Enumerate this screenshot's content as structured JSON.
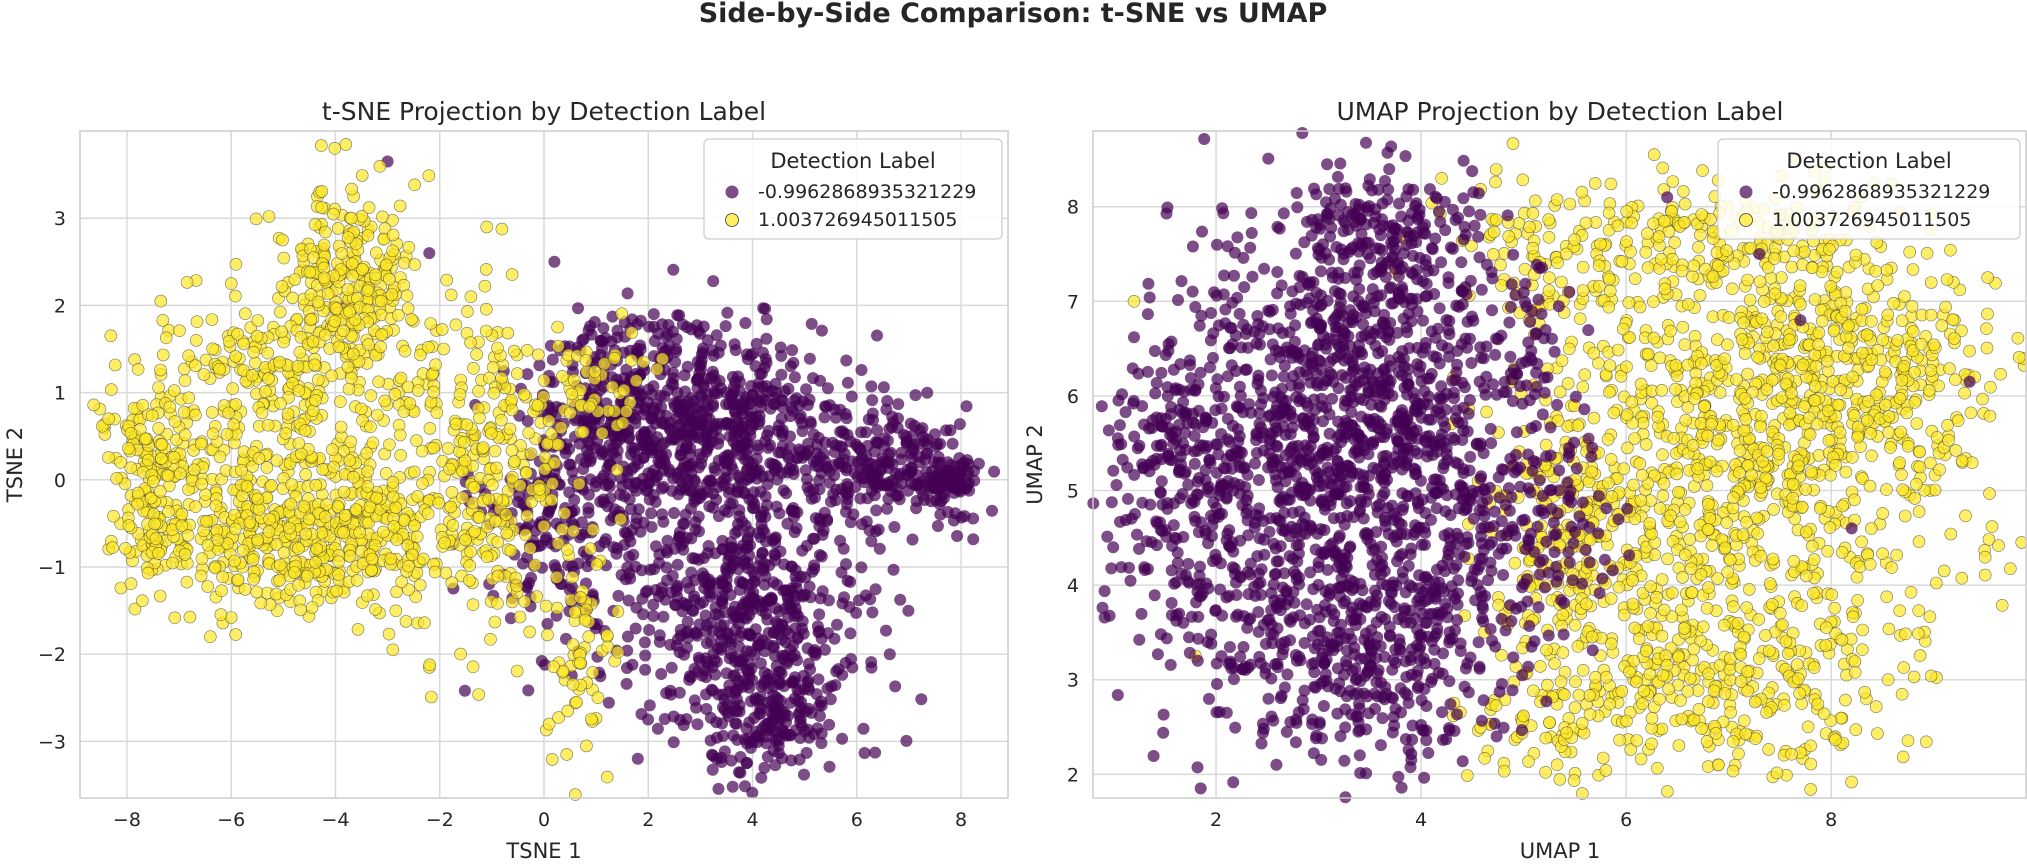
{
  "figure": {
    "suptitle": "Side-by-Side Comparison: t-SNE vs UMAP"
  },
  "colors": {
    "negative": "#440154",
    "positive": "#fde725",
    "grid": "#d9d9d9",
    "frame": "#cccccc",
    "text": "#262626"
  },
  "chart_data": [
    {
      "type": "scatter",
      "title": "t-SNE Projection by Detection Label",
      "xlabel": "TSNE 1",
      "ylabel": "TSNE 2",
      "xlim": [
        -8.9,
        8.9
      ],
      "ylim": [
        -3.65,
        4.0
      ],
      "xticks": [
        -8,
        -6,
        -4,
        -2,
        0,
        2,
        4,
        6,
        8
      ],
      "xtick_labels": [
        "−8",
        "−6",
        "−4",
        "−2",
        "0",
        "2",
        "4",
        "6",
        "8"
      ],
      "yticks": [
        -3,
        -2,
        -1,
        0,
        1,
        2,
        3
      ],
      "ytick_labels": [
        "−3",
        "−2",
        "−1",
        "0",
        "1",
        "2",
        "3"
      ],
      "grid": true,
      "legend": {
        "title": "Detection Label",
        "position": "top-right",
        "entries": [
          "-0.9962868935321229",
          "1.003726945011505"
        ]
      },
      "series": [
        {
          "name": "-0.9962868935321229",
          "color": "#440154",
          "clusters": [
            {
              "cx": 3.2,
              "cy": 0.6,
              "sx": 1.3,
              "sy": 0.6,
              "n": 650
            },
            {
              "cx": 3.8,
              "cy": -1.6,
              "sx": 1.2,
              "sy": 0.75,
              "n": 600
            },
            {
              "cx": 6.5,
              "cy": 0.1,
              "sx": 0.8,
              "sy": 0.35,
              "n": 230
            },
            {
              "cx": 7.7,
              "cy": 0.0,
              "sx": 0.35,
              "sy": 0.1,
              "n": 80
            },
            {
              "cx": 0.3,
              "cy": -0.3,
              "sx": 0.75,
              "sy": 0.9,
              "n": 220
            },
            {
              "cx": 1.4,
              "cy": 0.9,
              "sx": 0.6,
              "sy": 0.6,
              "n": 140
            },
            {
              "cx": 4.3,
              "cy": -2.8,
              "sx": 0.6,
              "sy": 0.3,
              "n": 110
            }
          ],
          "outliers": [
            [
              -3.0,
              3.65
            ],
            [
              -2.2,
              2.6
            ],
            [
              -3.8,
              2.0
            ],
            [
              0.2,
              2.5
            ],
            [
              1.8,
              -3.2
            ]
          ]
        },
        {
          "name": "1.003726945011505",
          "color": "#fde725",
          "clusters": [
            {
              "cx": -4.5,
              "cy": -0.6,
              "sx": 1.6,
              "sy": 0.45,
              "n": 560
            },
            {
              "cx": -7.5,
              "cy": 0.1,
              "sx": 0.45,
              "sy": 0.55,
              "n": 170
            },
            {
              "cx": -3.8,
              "cy": 2.4,
              "sx": 0.65,
              "sy": 0.45,
              "n": 220
            },
            {
              "cx": -5.0,
              "cy": 1.2,
              "sx": 1.3,
              "sy": 0.55,
              "n": 270
            },
            {
              "cx": -2.2,
              "cy": 0.3,
              "sx": 0.9,
              "sy": 0.9,
              "n": 160
            },
            {
              "cx": -0.6,
              "cy": 0.1,
              "sx": 0.6,
              "sy": 0.9,
              "n": 150
            },
            {
              "cx": 0.7,
              "cy": -1.9,
              "sx": 0.35,
              "sy": 0.6,
              "n": 70
            },
            {
              "cx": 1.0,
              "cy": 1.1,
              "sx": 0.5,
              "sy": 0.4,
              "n": 50
            }
          ],
          "outliers": [
            [
              -6.4,
              -1.8
            ],
            [
              -2.9,
              -1.95
            ],
            [
              -1.6,
              -2.0
            ],
            [
              -1.1,
              2.9
            ],
            [
              -6.0,
              2.25
            ]
          ]
        }
      ]
    },
    {
      "type": "scatter",
      "title": "UMAP Projection by Detection Label",
      "xlabel": "UMAP 1",
      "ylabel": "UMAP 2",
      "xlim": [
        0.8,
        9.9
      ],
      "ylim": [
        1.75,
        8.8
      ],
      "xticks": [
        2,
        4,
        6,
        8
      ],
      "xtick_labels": [
        "2",
        "4",
        "6",
        "8"
      ],
      "yticks": [
        2,
        3,
        4,
        5,
        6,
        7,
        8
      ],
      "ytick_labels": [
        "2",
        "3",
        "4",
        "5",
        "6",
        "7",
        "8"
      ],
      "grid": true,
      "legend": {
        "title": "Detection Label",
        "position": "top-right",
        "entries": [
          "-0.9962868935321229",
          "1.003726945011505"
        ]
      },
      "series": [
        {
          "name": "-0.9962868935321229",
          "color": "#440154",
          "clusters": [
            {
              "cx": 2.4,
              "cy": 5.2,
              "sx": 0.7,
              "sy": 1.2,
              "n": 620
            },
            {
              "cx": 3.5,
              "cy": 6.4,
              "sx": 0.6,
              "sy": 0.9,
              "n": 500
            },
            {
              "cx": 3.4,
              "cy": 3.4,
              "sx": 0.7,
              "sy": 0.7,
              "n": 420
            },
            {
              "cx": 4.2,
              "cy": 4.8,
              "sx": 0.6,
              "sy": 1.0,
              "n": 340
            },
            {
              "cx": 3.7,
              "cy": 7.7,
              "sx": 0.45,
              "sy": 0.3,
              "n": 130
            },
            {
              "cx": 1.5,
              "cy": 5.3,
              "sx": 0.3,
              "sy": 0.8,
              "n": 110
            },
            {
              "cx": 5.2,
              "cy": 4.6,
              "sx": 0.35,
              "sy": 0.7,
              "n": 80
            },
            {
              "cx": 5.0,
              "cy": 6.5,
              "sx": 0.3,
              "sy": 0.6,
              "n": 40
            }
          ],
          "outliers": [
            [
              9.35,
              6.15
            ],
            [
              7.3,
              7.5
            ],
            [
              6.4,
              8.1
            ],
            [
              7.7,
              6.8
            ],
            [
              8.2,
              4.6
            ]
          ]
        },
        {
          "name": "1.003726945011505",
          "color": "#fde725",
          "clusters": [
            {
              "cx": 7.2,
              "cy": 5.2,
              "sx": 1.0,
              "sy": 1.3,
              "n": 900
            },
            {
              "cx": 8.3,
              "cy": 6.4,
              "sx": 0.6,
              "sy": 0.7,
              "n": 260
            },
            {
              "cx": 6.8,
              "cy": 3.0,
              "sx": 0.8,
              "sy": 0.5,
              "n": 260
            },
            {
              "cx": 5.5,
              "cy": 4.6,
              "sx": 0.45,
              "sy": 1.0,
              "n": 200
            },
            {
              "cx": 6.8,
              "cy": 7.6,
              "sx": 0.7,
              "sy": 0.35,
              "n": 160
            },
            {
              "cx": 5.2,
              "cy": 7.5,
              "sx": 0.5,
              "sy": 0.5,
              "n": 90
            },
            {
              "cx": 5.2,
              "cy": 2.5,
              "sx": 0.5,
              "sy": 0.3,
              "n": 60
            }
          ],
          "outliers": [
            [
              1.8,
              3.25
            ],
            [
              9.4,
              6.2
            ],
            [
              4.2,
              8.3
            ],
            [
              1.2,
              7.0
            ],
            [
              6.9,
              2.1
            ]
          ]
        }
      ]
    }
  ]
}
